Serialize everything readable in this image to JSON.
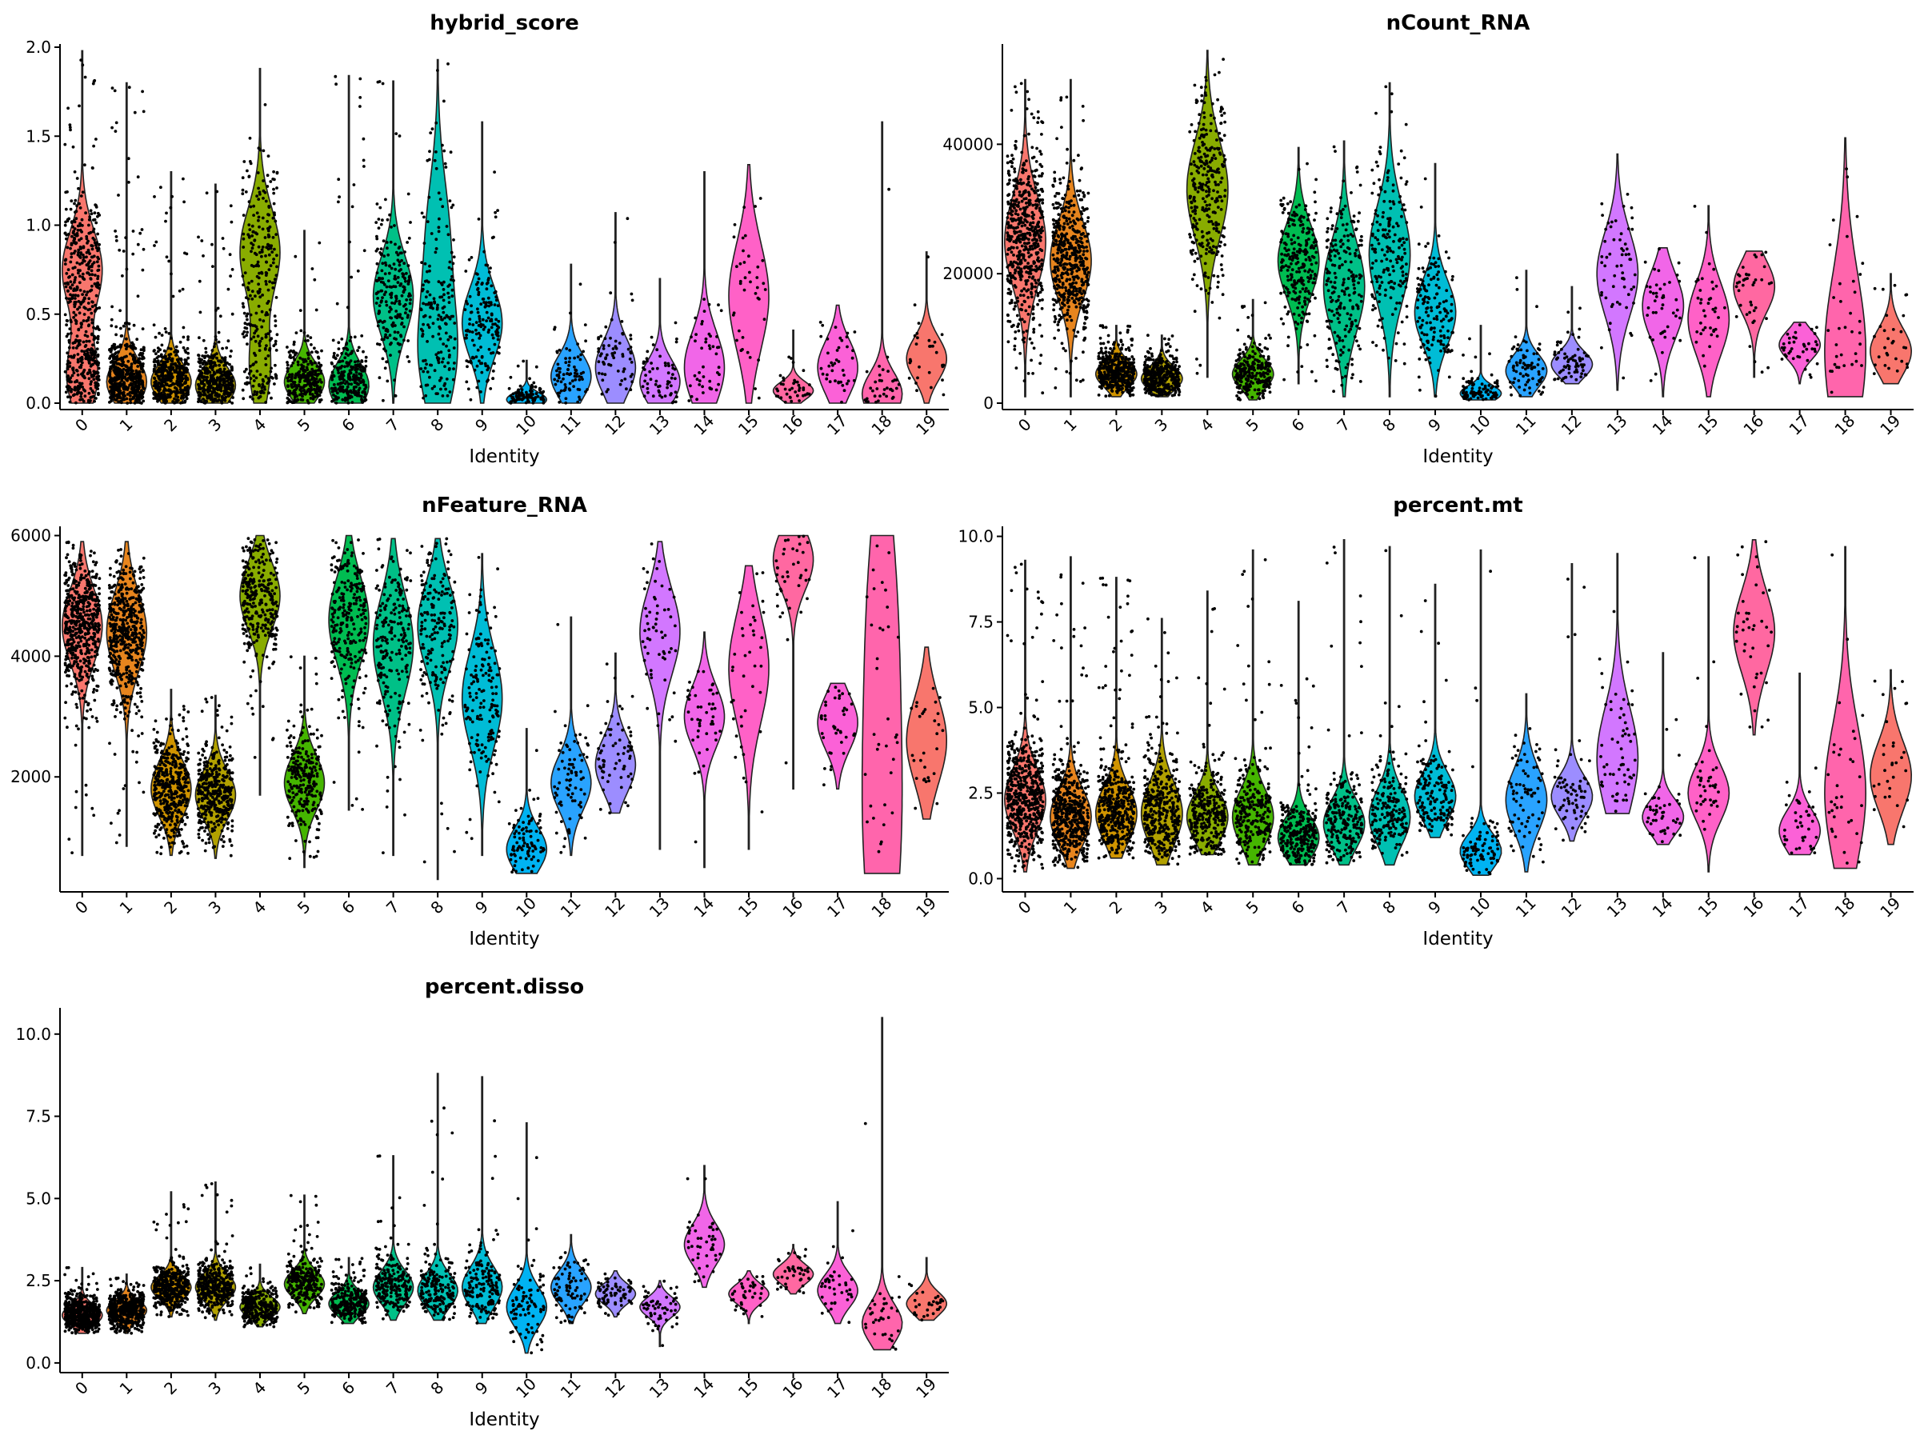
{
  "colors": [
    "#F8766D",
    "#E7851E",
    "#D09400",
    "#B2A100",
    "#89AC00",
    "#45B500",
    "#00BC51",
    "#00C087",
    "#00C0B2",
    "#00BCD6",
    "#00B3F2",
    "#29A3FF",
    "#9C8DFF",
    "#D277FF",
    "#F166E8",
    "#FF61C7",
    "#FF68A1",
    "#FB61D7",
    "#FF65AC",
    "#F8766D"
  ],
  "chart_data": [
    {
      "type": "violin",
      "title": "hybrid_score",
      "xlabel": "Identity",
      "ylabel": "",
      "categories": [
        "0",
        "1",
        "2",
        "3",
        "4",
        "5",
        "6",
        "7",
        "8",
        "9",
        "10",
        "11",
        "12",
        "13",
        "14",
        "15",
        "16",
        "17",
        "18",
        "19"
      ],
      "ylim": [
        0,
        2.0
      ],
      "yticks": [
        0.0,
        0.5,
        1.0,
        1.5,
        2.0
      ],
      "ytick_labels": [
        "0.0",
        "0.5",
        "1.0",
        "1.5",
        "2.0"
      ],
      "point_counts": [
        550,
        500,
        420,
        380,
        300,
        260,
        260,
        220,
        190,
        160,
        90,
        80,
        70,
        60,
        45,
        40,
        40,
        40,
        35,
        30
      ],
      "series": [
        {
          "cluster": "0",
          "min": 0.0,
          "max": 1.98,
          "mode": 0.15,
          "spread": 0.18,
          "mode2": 0.75,
          "weight2": 0.45
        },
        {
          "cluster": "1",
          "min": 0.0,
          "max": 1.8,
          "mode": 0.12,
          "spread": 0.12
        },
        {
          "cluster": "2",
          "min": 0.0,
          "max": 1.3,
          "mode": 0.12,
          "spread": 0.1
        },
        {
          "cluster": "3",
          "min": 0.0,
          "max": 1.23,
          "mode": 0.1,
          "spread": 0.1
        },
        {
          "cluster": "4",
          "min": 0.0,
          "max": 1.88,
          "mode": 0.2,
          "spread": 0.2,
          "mode2": 0.85,
          "weight2": 0.55
        },
        {
          "cluster": "5",
          "min": 0.0,
          "max": 0.97,
          "mode": 0.12,
          "spread": 0.1
        },
        {
          "cluster": "6",
          "min": 0.0,
          "max": 1.84,
          "mode": 0.1,
          "spread": 0.12
        },
        {
          "cluster": "7",
          "min": 0.0,
          "max": 1.81,
          "mode": 0.6,
          "spread": 0.22
        },
        {
          "cluster": "8",
          "min": 0.0,
          "max": 1.93,
          "mode": 0.25,
          "spread": 0.3,
          "mode2": 0.9,
          "weight2": 0.3
        },
        {
          "cluster": "9",
          "min": 0.0,
          "max": 1.58,
          "mode": 0.45,
          "spread": 0.2
        },
        {
          "cluster": "10",
          "min": 0.0,
          "max": 0.24,
          "mode": 0.02,
          "spread": 0.04
        },
        {
          "cluster": "11",
          "min": 0.0,
          "max": 0.78,
          "mode": 0.15,
          "spread": 0.12
        },
        {
          "cluster": "12",
          "min": 0.0,
          "max": 1.07,
          "mode": 0.2,
          "spread": 0.15
        },
        {
          "cluster": "13",
          "min": 0.0,
          "max": 0.7,
          "mode": 0.12,
          "spread": 0.12
        },
        {
          "cluster": "14",
          "min": 0.0,
          "max": 1.3,
          "mode": 0.2,
          "spread": 0.2
        },
        {
          "cluster": "15",
          "min": 0.0,
          "max": 1.34,
          "mode": 0.6,
          "spread": 0.3
        },
        {
          "cluster": "16",
          "min": 0.0,
          "max": 0.41,
          "mode": 0.07,
          "spread": 0.05
        },
        {
          "cluster": "17",
          "min": 0.0,
          "max": 0.55,
          "mode": 0.2,
          "spread": 0.15
        },
        {
          "cluster": "18",
          "min": 0.0,
          "max": 1.58,
          "mode": 0.05,
          "spread": 0.12
        },
        {
          "cluster": "19",
          "min": 0.0,
          "max": 0.85,
          "mode": 0.25,
          "spread": 0.12
        }
      ]
    },
    {
      "type": "violin",
      "title": "nCount_RNA",
      "xlabel": "Identity",
      "ylabel": "",
      "categories": [
        "0",
        "1",
        "2",
        "3",
        "4",
        "5",
        "6",
        "7",
        "8",
        "9",
        "10",
        "11",
        "12",
        "13",
        "14",
        "15",
        "16",
        "17",
        "18",
        "19"
      ],
      "ylim": [
        0,
        55000
      ],
      "yticks": [
        0,
        20000,
        40000
      ],
      "ytick_labels": [
        "0",
        "20000",
        "40000"
      ],
      "point_counts": [
        550,
        500,
        420,
        380,
        300,
        260,
        260,
        220,
        190,
        160,
        90,
        80,
        70,
        60,
        45,
        40,
        40,
        40,
        35,
        30
      ],
      "series": [
        {
          "cluster": "0",
          "min": 1000,
          "max": 50000,
          "mode": 25000,
          "spread": 7000
        },
        {
          "cluster": "1",
          "min": 1000,
          "max": 50000,
          "mode": 22000,
          "spread": 6000
        },
        {
          "cluster": "2",
          "min": 1000,
          "max": 12000,
          "mode": 4500,
          "spread": 2000
        },
        {
          "cluster": "3",
          "min": 1000,
          "max": 10500,
          "mode": 3800,
          "spread": 1800
        },
        {
          "cluster": "4",
          "min": 4000,
          "max": 54500,
          "mode": 33000,
          "spread": 7500
        },
        {
          "cluster": "5",
          "min": 500,
          "max": 16000,
          "mode": 4500,
          "spread": 2200
        },
        {
          "cluster": "6",
          "min": 3000,
          "max": 39500,
          "mode": 22000,
          "spread": 5500
        },
        {
          "cluster": "7",
          "min": 1000,
          "max": 40500,
          "mode": 18000,
          "spread": 7000
        },
        {
          "cluster": "8",
          "min": 1000,
          "max": 49500,
          "mode": 23000,
          "spread": 7500
        },
        {
          "cluster": "9",
          "min": 1000,
          "max": 37000,
          "mode": 14000,
          "spread": 5000
        },
        {
          "cluster": "10",
          "min": 500,
          "max": 12000,
          "mode": 1500,
          "spread": 1200
        },
        {
          "cluster": "11",
          "min": 1000,
          "max": 20500,
          "mode": 5000,
          "spread": 2500
        },
        {
          "cluster": "12",
          "min": 3000,
          "max": 18000,
          "mode": 6000,
          "spread": 2000
        },
        {
          "cluster": "13",
          "min": 2000,
          "max": 38500,
          "mode": 20000,
          "spread": 6500
        },
        {
          "cluster": "14",
          "min": 1000,
          "max": 24000,
          "mode": 15000,
          "spread": 5000
        },
        {
          "cluster": "15",
          "min": 1000,
          "max": 30500,
          "mode": 13000,
          "spread": 5500
        },
        {
          "cluster": "16",
          "min": 4000,
          "max": 23500,
          "mode": 18000,
          "spread": 4000
        },
        {
          "cluster": "17",
          "min": 3000,
          "max": 12500,
          "mode": 9000,
          "spread": 2200
        },
        {
          "cluster": "18",
          "min": 1000,
          "max": 41000,
          "mode": 8000,
          "spread": 12000
        },
        {
          "cluster": "19",
          "min": 3000,
          "max": 20000,
          "mode": 8000,
          "spread": 3500
        }
      ]
    },
    {
      "type": "violin",
      "title": "nFeature_RNA",
      "xlabel": "Identity",
      "ylabel": "",
      "categories": [
        "0",
        "1",
        "2",
        "3",
        "4",
        "5",
        "6",
        "7",
        "8",
        "9",
        "10",
        "11",
        "12",
        "13",
        "14",
        "15",
        "16",
        "17",
        "18",
        "19"
      ],
      "ylim": [
        200,
        6100
      ],
      "yticks": [
        2000,
        4000,
        6000
      ],
      "ytick_labels": [
        "2000",
        "4000",
        "6000"
      ],
      "point_counts": [
        550,
        500,
        420,
        380,
        300,
        260,
        260,
        220,
        190,
        160,
        90,
        80,
        70,
        60,
        45,
        40,
        40,
        40,
        35,
        30
      ],
      "series": [
        {
          "cluster": "0",
          "min": 700,
          "max": 5900,
          "mode": 4500,
          "spread": 600
        },
        {
          "cluster": "1",
          "min": 850,
          "max": 5900,
          "mode": 4400,
          "spread": 650
        },
        {
          "cluster": "2",
          "min": 700,
          "max": 3450,
          "mode": 1800,
          "spread": 450
        },
        {
          "cluster": "3",
          "min": 650,
          "max": 3350,
          "mode": 1700,
          "spread": 400
        },
        {
          "cluster": "4",
          "min": 1700,
          "max": 6000,
          "mode": 5000,
          "spread": 550
        },
        {
          "cluster": "5",
          "min": 500,
          "max": 4000,
          "mode": 1900,
          "spread": 450
        },
        {
          "cluster": "6",
          "min": 1450,
          "max": 6000,
          "mode": 4600,
          "spread": 700
        },
        {
          "cluster": "7",
          "min": 700,
          "max": 5950,
          "mode": 4200,
          "spread": 800
        },
        {
          "cluster": "8",
          "min": 300,
          "max": 5950,
          "mode": 4500,
          "spread": 700
        },
        {
          "cluster": "9",
          "min": 700,
          "max": 5700,
          "mode": 3300,
          "spread": 800
        },
        {
          "cluster": "10",
          "min": 400,
          "max": 2800,
          "mode": 800,
          "spread": 350
        },
        {
          "cluster": "11",
          "min": 700,
          "max": 4650,
          "mode": 1900,
          "spread": 450
        },
        {
          "cluster": "12",
          "min": 1400,
          "max": 4050,
          "mode": 2200,
          "spread": 450
        },
        {
          "cluster": "13",
          "min": 800,
          "max": 5900,
          "mode": 4400,
          "spread": 700
        },
        {
          "cluster": "14",
          "min": 500,
          "max": 4400,
          "mode": 3000,
          "spread": 500
        },
        {
          "cluster": "15",
          "min": 800,
          "max": 5500,
          "mode": 3800,
          "spread": 900
        },
        {
          "cluster": "16",
          "min": 1800,
          "max": 6000,
          "mode": 5600,
          "spread": 500
        },
        {
          "cluster": "17",
          "min": 1800,
          "max": 3550,
          "mode": 2900,
          "spread": 450
        },
        {
          "cluster": "18",
          "min": 400,
          "max": 6000,
          "mode": 5000,
          "spread": 1800,
          "mode2": 1200,
          "weight2": 0.5
        },
        {
          "cluster": "19",
          "min": 1300,
          "max": 4150,
          "mode": 2600,
          "spread": 700
        }
      ]
    },
    {
      "type": "violin",
      "title": "percent.mt",
      "xlabel": "Identity",
      "ylabel": "",
      "categories": [
        "0",
        "1",
        "2",
        "3",
        "4",
        "5",
        "6",
        "7",
        "8",
        "9",
        "10",
        "11",
        "12",
        "13",
        "14",
        "15",
        "16",
        "17",
        "18",
        "19"
      ],
      "ylim": [
        -0.2,
        10.2
      ],
      "yticks": [
        0.0,
        2.5,
        5.0,
        7.5,
        10.0
      ],
      "ytick_labels": [
        "0.0",
        "2.5",
        "5.0",
        "7.5",
        "10.0"
      ],
      "point_counts": [
        550,
        500,
        420,
        380,
        300,
        260,
        260,
        220,
        190,
        160,
        90,
        80,
        70,
        60,
        45,
        40,
        40,
        40,
        35,
        30
      ],
      "series": [
        {
          "cluster": "0",
          "min": 0.2,
          "max": 9.3,
          "mode": 2.3,
          "spread": 0.9
        },
        {
          "cluster": "1",
          "min": 0.3,
          "max": 9.4,
          "mode": 1.8,
          "spread": 0.8
        },
        {
          "cluster": "2",
          "min": 0.6,
          "max": 8.8,
          "mode": 1.9,
          "spread": 0.8
        },
        {
          "cluster": "3",
          "min": 0.4,
          "max": 7.6,
          "mode": 1.9,
          "spread": 0.9
        },
        {
          "cluster": "4",
          "min": 0.7,
          "max": 8.4,
          "mode": 1.8,
          "spread": 0.7
        },
        {
          "cluster": "5",
          "min": 0.4,
          "max": 9.6,
          "mode": 1.8,
          "spread": 0.8
        },
        {
          "cluster": "6",
          "min": 0.4,
          "max": 8.1,
          "mode": 1.2,
          "spread": 0.6
        },
        {
          "cluster": "7",
          "min": 0.4,
          "max": 9.9,
          "mode": 1.6,
          "spread": 0.7
        },
        {
          "cluster": "8",
          "min": 0.4,
          "max": 9.7,
          "mode": 1.8,
          "spread": 0.8
        },
        {
          "cluster": "9",
          "min": 1.2,
          "max": 8.6,
          "mode": 2.4,
          "spread": 0.7
        },
        {
          "cluster": "10",
          "min": 0.1,
          "max": 9.6,
          "mode": 0.8,
          "spread": 0.5
        },
        {
          "cluster": "11",
          "min": 0.2,
          "max": 5.4,
          "mode": 2.3,
          "spread": 0.9
        },
        {
          "cluster": "12",
          "min": 1.1,
          "max": 9.2,
          "mode": 2.4,
          "spread": 0.6
        },
        {
          "cluster": "13",
          "min": 1.9,
          "max": 9.5,
          "mode": 3.5,
          "spread": 1.5
        },
        {
          "cluster": "14",
          "min": 1.0,
          "max": 6.6,
          "mode": 1.8,
          "spread": 0.5
        },
        {
          "cluster": "15",
          "min": 0.2,
          "max": 9.4,
          "mode": 2.5,
          "spread": 0.8
        },
        {
          "cluster": "16",
          "min": 4.2,
          "max": 9.9,
          "mode": 7.2,
          "spread": 1.2
        },
        {
          "cluster": "17",
          "min": 0.7,
          "max": 6.0,
          "mode": 1.4,
          "spread": 0.6
        },
        {
          "cluster": "18",
          "min": 0.3,
          "max": 9.7,
          "mode": 2.5,
          "spread": 2.0
        },
        {
          "cluster": "19",
          "min": 1.0,
          "max": 6.1,
          "mode": 3.0,
          "spread": 1.0
        }
      ]
    },
    {
      "type": "violin",
      "title": "percent.disso",
      "xlabel": "Identity",
      "ylabel": "",
      "categories": [
        "0",
        "1",
        "2",
        "3",
        "4",
        "5",
        "6",
        "7",
        "8",
        "9",
        "10",
        "11",
        "12",
        "13",
        "14",
        "15",
        "16",
        "17",
        "18",
        "19"
      ],
      "ylim": [
        -0.1,
        10.7
      ],
      "yticks": [
        0.0,
        2.5,
        5.0,
        7.5,
        10.0
      ],
      "ytick_labels": [
        "0.0",
        "2.5",
        "5.0",
        "7.5",
        "10.0"
      ],
      "point_counts": [
        550,
        500,
        420,
        380,
        300,
        260,
        260,
        220,
        190,
        160,
        90,
        80,
        70,
        60,
        45,
        40,
        40,
        40,
        35,
        30
      ],
      "series": [
        {
          "cluster": "0",
          "min": 0.9,
          "max": 2.9,
          "mode": 1.45,
          "spread": 0.3
        },
        {
          "cluster": "1",
          "min": 0.9,
          "max": 2.7,
          "mode": 1.6,
          "spread": 0.3
        },
        {
          "cluster": "2",
          "min": 1.4,
          "max": 5.2,
          "mode": 2.3,
          "spread": 0.35
        },
        {
          "cluster": "3",
          "min": 1.3,
          "max": 5.5,
          "mode": 2.3,
          "spread": 0.4
        },
        {
          "cluster": "4",
          "min": 1.1,
          "max": 3.0,
          "mode": 1.7,
          "spread": 0.3
        },
        {
          "cluster": "5",
          "min": 1.5,
          "max": 5.1,
          "mode": 2.4,
          "spread": 0.4
        },
        {
          "cluster": "6",
          "min": 1.2,
          "max": 3.2,
          "mode": 1.8,
          "spread": 0.35
        },
        {
          "cluster": "7",
          "min": 1.3,
          "max": 6.3,
          "mode": 2.3,
          "spread": 0.5
        },
        {
          "cluster": "8",
          "min": 1.3,
          "max": 8.8,
          "mode": 2.2,
          "spread": 0.5
        },
        {
          "cluster": "9",
          "min": 1.2,
          "max": 8.7,
          "mode": 2.3,
          "spread": 0.6
        },
        {
          "cluster": "10",
          "min": 0.3,
          "max": 7.3,
          "mode": 1.7,
          "spread": 0.6
        },
        {
          "cluster": "11",
          "min": 1.2,
          "max": 3.9,
          "mode": 2.3,
          "spread": 0.5
        },
        {
          "cluster": "12",
          "min": 1.4,
          "max": 2.8,
          "mode": 2.1,
          "spread": 0.3
        },
        {
          "cluster": "13",
          "min": 0.5,
          "max": 2.5,
          "mode": 1.7,
          "spread": 0.3
        },
        {
          "cluster": "14",
          "min": 2.3,
          "max": 6.0,
          "mode": 3.6,
          "spread": 0.6
        },
        {
          "cluster": "15",
          "min": 1.2,
          "max": 2.8,
          "mode": 2.1,
          "spread": 0.3
        },
        {
          "cluster": "16",
          "min": 2.1,
          "max": 3.6,
          "mode": 2.7,
          "spread": 0.3
        },
        {
          "cluster": "17",
          "min": 1.2,
          "max": 4.9,
          "mode": 2.2,
          "spread": 0.5
        },
        {
          "cluster": "18",
          "min": 0.4,
          "max": 10.5,
          "mode": 1.2,
          "spread": 0.6
        },
        {
          "cluster": "19",
          "min": 1.3,
          "max": 3.2,
          "mode": 1.8,
          "spread": 0.35
        }
      ]
    }
  ]
}
